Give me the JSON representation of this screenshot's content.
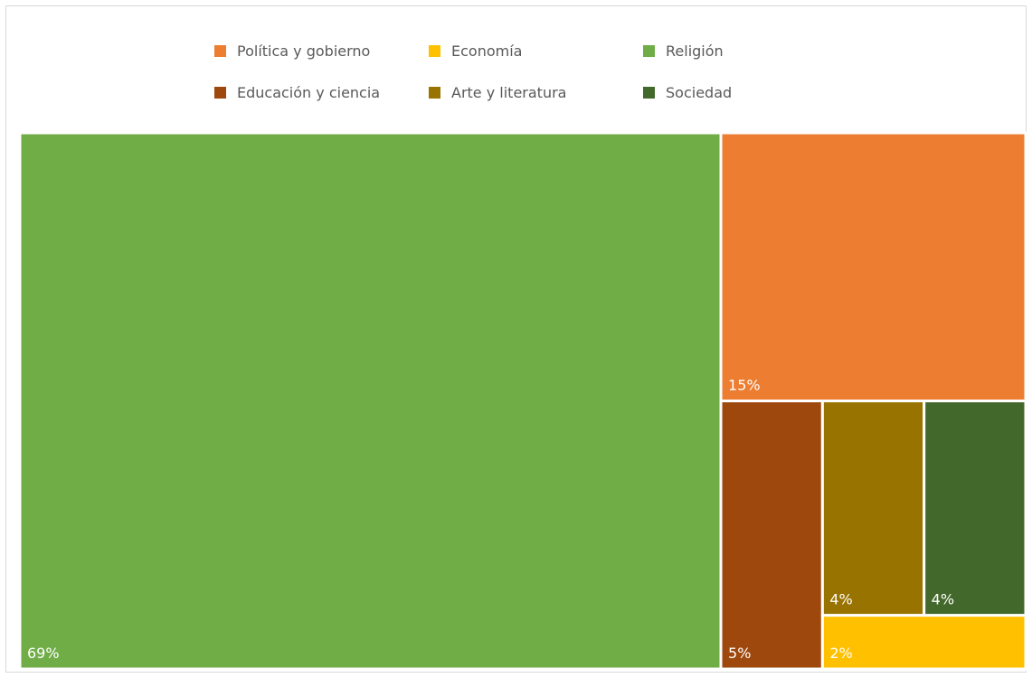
{
  "chart_data": {
    "type": "treemap",
    "series": [
      {
        "name": "Religión",
        "value": 69,
        "label": "69%",
        "color": "#70ad47"
      },
      {
        "name": "Política y gobierno",
        "value": 15,
        "label": "15%",
        "color": "#ed7d31"
      },
      {
        "name": "Educación y ciencia",
        "value": 5,
        "label": "5%",
        "color": "#9e480e"
      },
      {
        "name": "Arte y literatura",
        "value": 4,
        "label": "4%",
        "color": "#997300"
      },
      {
        "name": "Sociedad",
        "value": 4,
        "label": "4%",
        "color": "#43682b"
      },
      {
        "name": "Economía",
        "value": 2,
        "label": "2%",
        "color": "#ffc000"
      }
    ],
    "legend": {
      "placement": "top",
      "entries": [
        {
          "label": "Política y gobierno",
          "color": "#ed7d31"
        },
        {
          "label": "Economía",
          "color": "#ffc000"
        },
        {
          "label": "Religión",
          "color": "#70ad47"
        },
        {
          "label": "Educación y ciencia",
          "color": "#9e480e"
        },
        {
          "label": "Arte y literatura",
          "color": "#997300"
        },
        {
          "label": "Sociedad",
          "color": "#43682b"
        }
      ]
    }
  }
}
